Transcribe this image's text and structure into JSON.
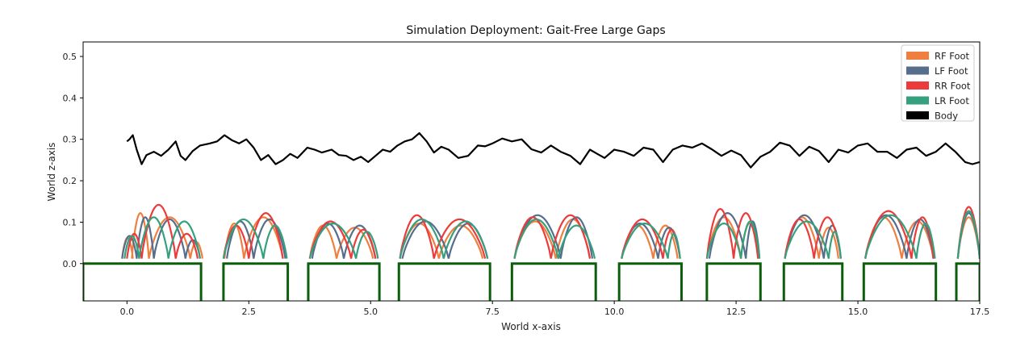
{
  "chart_data": {
    "type": "line",
    "title": "Simulation Deployment: Gait-Free Large Gaps",
    "xlabel": "World x-axis",
    "ylabel": "World z-axis",
    "xlim": [
      -0.9,
      17.5
    ],
    "ylim": [
      -0.09,
      0.535
    ],
    "xticks": [
      0.0,
      2.5,
      5.0,
      7.5,
      10.0,
      12.5,
      15.0,
      17.5
    ],
    "yticks": [
      0.0,
      0.1,
      0.2,
      0.3,
      0.4,
      0.5
    ],
    "grid": false,
    "legend_position": "top-right",
    "legend": [
      {
        "name": "RF Foot",
        "color": "#f07f3f"
      },
      {
        "name": "LF Foot",
        "color": "#566e8c"
      },
      {
        "name": "RR Foot",
        "color": "#ec3b3b"
      },
      {
        "name": "LR Foot",
        "color": "#35a07d"
      },
      {
        "name": "Body",
        "color": "#000000"
      }
    ],
    "terrain": {
      "color": "#0b5e0b",
      "height": 0.0,
      "bottom": -0.09,
      "platforms": [
        [
          -0.9,
          1.52
        ],
        [
          1.98,
          3.3
        ],
        [
          3.72,
          5.18
        ],
        [
          5.58,
          7.45
        ],
        [
          7.9,
          9.62
        ],
        [
          10.1,
          11.38
        ],
        [
          11.9,
          13.0
        ],
        [
          13.48,
          14.68
        ],
        [
          15.12,
          16.6
        ],
        [
          17.02,
          17.5
        ]
      ]
    },
    "body": {
      "name": "Body",
      "color": "#000000",
      "x": [
        0.0,
        0.05,
        0.12,
        0.2,
        0.3,
        0.4,
        0.55,
        0.7,
        0.85,
        1.0,
        1.1,
        1.2,
        1.35,
        1.5,
        1.7,
        1.85,
        2.0,
        2.15,
        2.3,
        2.45,
        2.6,
        2.75,
        2.9,
        3.05,
        3.2,
        3.35,
        3.5,
        3.7,
        3.85,
        4.0,
        4.2,
        4.35,
        4.5,
        4.65,
        4.8,
        4.95,
        5.1,
        5.25,
        5.4,
        5.55,
        5.7,
        5.85,
        6.0,
        6.15,
        6.3,
        6.45,
        6.6,
        6.8,
        7.0,
        7.2,
        7.35,
        7.5,
        7.7,
        7.9,
        8.1,
        8.3,
        8.5,
        8.7,
        8.9,
        9.1,
        9.3,
        9.5,
        9.65,
        9.8,
        10.0,
        10.2,
        10.4,
        10.6,
        10.8,
        11.0,
        11.2,
        11.4,
        11.6,
        11.8,
        12.0,
        12.2,
        12.4,
        12.6,
        12.8,
        13.0,
        13.2,
        13.4,
        13.6,
        13.8,
        14.0,
        14.2,
        14.4,
        14.6,
        14.8,
        15.0,
        15.2,
        15.4,
        15.6,
        15.8,
        16.0,
        16.2,
        16.4,
        16.6,
        16.8,
        17.0,
        17.2,
        17.35,
        17.5
      ],
      "y": [
        0.295,
        0.3,
        0.31,
        0.275,
        0.24,
        0.262,
        0.27,
        0.26,
        0.275,
        0.295,
        0.26,
        0.25,
        0.272,
        0.285,
        0.29,
        0.295,
        0.31,
        0.298,
        0.29,
        0.3,
        0.28,
        0.25,
        0.262,
        0.24,
        0.25,
        0.265,
        0.255,
        0.28,
        0.275,
        0.268,
        0.275,
        0.262,
        0.26,
        0.25,
        0.258,
        0.245,
        0.26,
        0.275,
        0.27,
        0.285,
        0.295,
        0.3,
        0.315,
        0.295,
        0.268,
        0.282,
        0.275,
        0.255,
        0.26,
        0.285,
        0.283,
        0.29,
        0.302,
        0.295,
        0.3,
        0.276,
        0.268,
        0.285,
        0.27,
        0.26,
        0.24,
        0.275,
        0.265,
        0.255,
        0.275,
        0.27,
        0.26,
        0.28,
        0.275,
        0.245,
        0.275,
        0.285,
        0.28,
        0.29,
        0.276,
        0.26,
        0.273,
        0.262,
        0.232,
        0.258,
        0.27,
        0.292,
        0.285,
        0.26,
        0.282,
        0.272,
        0.245,
        0.275,
        0.268,
        0.285,
        0.29,
        0.27,
        0.27,
        0.255,
        0.275,
        0.28,
        0.26,
        0.27,
        0.29,
        0.27,
        0.245,
        0.24,
        0.245
      ]
    },
    "footsteps": [
      {
        "name": "RF Foot",
        "color": "#f07f3f",
        "steps": [
          [
            -0.1,
            0.12,
            0.05
          ],
          [
            0.1,
            0.45,
            0.11
          ],
          [
            0.45,
            1.3,
            0.1
          ],
          [
            1.3,
            1.55,
            0.04
          ],
          [
            2.0,
            2.4,
            0.085
          ],
          [
            2.4,
            3.2,
            0.1
          ],
          [
            3.75,
            4.3,
            0.08
          ],
          [
            4.3,
            5.05,
            0.075
          ],
          [
            5.6,
            6.4,
            0.085
          ],
          [
            6.4,
            7.3,
            0.08
          ],
          [
            7.95,
            8.8,
            0.09
          ],
          [
            8.8,
            9.5,
            0.095
          ],
          [
            10.15,
            10.8,
            0.08
          ],
          [
            10.8,
            11.3,
            0.08
          ],
          [
            11.9,
            12.6,
            0.1
          ],
          [
            12.6,
            12.95,
            0.085
          ],
          [
            13.5,
            14.2,
            0.1
          ],
          [
            14.2,
            14.6,
            0.075
          ],
          [
            15.15,
            15.9,
            0.1
          ],
          [
            15.9,
            16.55,
            0.09
          ],
          [
            17.05,
            17.5,
            0.1
          ]
        ]
      },
      {
        "name": "LF Foot",
        "color": "#566e8c",
        "steps": [
          [
            -0.1,
            0.2,
            0.055
          ],
          [
            0.2,
            0.55,
            0.1
          ],
          [
            0.55,
            1.2,
            0.095
          ],
          [
            1.2,
            1.5,
            0.045
          ],
          [
            2.05,
            2.6,
            0.09
          ],
          [
            2.6,
            3.25,
            0.095
          ],
          [
            3.8,
            4.45,
            0.085
          ],
          [
            4.45,
            5.1,
            0.08
          ],
          [
            5.65,
            6.6,
            0.09
          ],
          [
            6.6,
            7.4,
            0.085
          ],
          [
            7.95,
            8.9,
            0.105
          ],
          [
            8.9,
            9.55,
            0.1
          ],
          [
            10.15,
            10.9,
            0.085
          ],
          [
            10.9,
            11.35,
            0.075
          ],
          [
            11.95,
            12.7,
            0.11
          ],
          [
            12.7,
            12.98,
            0.09
          ],
          [
            13.5,
            14.3,
            0.105
          ],
          [
            14.3,
            14.65,
            0.08
          ],
          [
            15.15,
            16.0,
            0.105
          ],
          [
            16.0,
            16.55,
            0.095
          ],
          [
            17.05,
            17.5,
            0.11
          ]
        ]
      },
      {
        "name": "RR Foot",
        "color": "#ec3b3b",
        "steps": [
          [
            0.0,
            0.3,
            0.06
          ],
          [
            0.3,
            1.0,
            0.13
          ],
          [
            1.0,
            1.45,
            0.06
          ],
          [
            1.98,
            2.5,
            0.08
          ],
          [
            2.5,
            3.2,
            0.11
          ],
          [
            3.75,
            4.6,
            0.09
          ],
          [
            4.6,
            5.1,
            0.07
          ],
          [
            5.6,
            6.3,
            0.105
          ],
          [
            6.3,
            7.35,
            0.095
          ],
          [
            7.95,
            8.7,
            0.1
          ],
          [
            8.7,
            9.5,
            0.105
          ],
          [
            10.15,
            11.0,
            0.095
          ],
          [
            11.0,
            11.35,
            0.07
          ],
          [
            11.9,
            12.45,
            0.12
          ],
          [
            12.45,
            12.95,
            0.11
          ],
          [
            13.5,
            14.1,
            0.095
          ],
          [
            14.1,
            14.65,
            0.1
          ],
          [
            15.15,
            16.1,
            0.115
          ],
          [
            16.1,
            16.55,
            0.1
          ],
          [
            17.05,
            17.5,
            0.125
          ]
        ]
      },
      {
        "name": "LR Foot",
        "color": "#35a07d",
        "steps": [
          [
            -0.05,
            0.25,
            0.055
          ],
          [
            0.25,
            0.85,
            0.1
          ],
          [
            0.85,
            1.5,
            0.09
          ],
          [
            1.98,
            2.8,
            0.095
          ],
          [
            2.8,
            3.28,
            0.08
          ],
          [
            3.75,
            4.7,
            0.085
          ],
          [
            4.7,
            5.15,
            0.065
          ],
          [
            5.6,
            6.5,
            0.095
          ],
          [
            6.5,
            7.4,
            0.09
          ],
          [
            7.95,
            8.85,
            0.095
          ],
          [
            8.85,
            9.6,
            0.08
          ],
          [
            10.15,
            11.1,
            0.085
          ],
          [
            11.1,
            11.35,
            0.06
          ],
          [
            11.9,
            12.6,
            0.085
          ],
          [
            12.6,
            12.98,
            0.09
          ],
          [
            13.5,
            14.4,
            0.09
          ],
          [
            14.4,
            14.65,
            0.065
          ],
          [
            15.15,
            16.2,
            0.105
          ],
          [
            16.2,
            16.58,
            0.085
          ],
          [
            17.05,
            17.5,
            0.115
          ]
        ]
      }
    ]
  }
}
